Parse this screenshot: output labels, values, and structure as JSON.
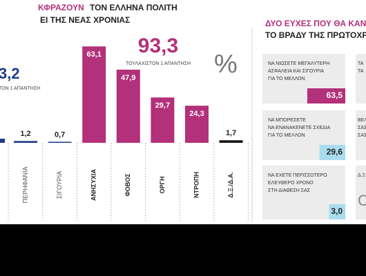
{
  "chart_data": [
    {
      "type": "bar",
      "title": [
        "ΚΦΡΑΖΟΥΝ",
        "ΤΟΝ ΕΛΛΗΝΑ ΠΟΛΙΤΗ",
        "ΕΙ ΤΗΣ ΝΕΑΣ ΧΡΟΝΙΑΣ"
      ],
      "categories": [
        "ΠΕΡΗΦΑΝΙΑ",
        "ΣΙΓΟΥΡΙΑ",
        "ΑΝΗΣΥΧΙΑ",
        "ΦΟΒΟΣ",
        "ΟΡΓΗ",
        "ΝΤΡΟΠΗ",
        "Δ.Ξ./Δ.Α."
      ],
      "values": [
        1.2,
        0.7,
        63.1,
        47.9,
        29.7,
        24.3,
        1.7
      ],
      "value_labels": [
        "1,2",
        "0,7",
        "63,1",
        "47,9",
        "29,7",
        "24,3",
        "1,7"
      ],
      "colors": [
        "#1f3c8c",
        "#1f3c8c",
        "#b3307a",
        "#b3307a",
        "#b3307a",
        "#b3307a",
        "#1a1a1a"
      ],
      "ylim": [
        0,
        70
      ],
      "unit": "%",
      "annotations": [
        {
          "value_label": "3,2",
          "caption": "ΤΟΝ 1 ΑΠΑΝΤΗΣΗ",
          "color": "#1f3c8c"
        },
        {
          "value_label": "93,3",
          "caption": "ΤΟΥΛΑΧΙΣΤΟΝ 1 ΑΠΑΝΤΗΣΗ",
          "color": "#b3307a"
        }
      ]
    },
    {
      "type": "hbar",
      "title": [
        "ΔΥΟ ΕΥΧΕΣ ΠΟΥ ΘΑ ΚΑΝΑ",
        "ΤΟ ΒΡΑΔΥ ΤΗΣ ΠΡΩΤΟΧΡΟ"
      ],
      "categories": [
        [
          "ΝΑ ΝΙΩΣΕΤΕ ΜΕΓΑΛΥΤΕΡΗ",
          "ΑΣΦΑΛΕΙΑ ΚΑΙ ΣΙΓΟΥΡΙΑ",
          "ΓΙΑ ΤΟ ΜΕΛΛΟΝ"
        ],
        [
          "ΝΑ ΜΠΟΡΕΣΕΤΕ",
          "ΝΑ ΕΝΑΝΑΚΕΝΕΤΕ ΣΧΕΔΙΑ",
          "ΓΙΑ ΤΟ ΜΕΛΛΟΝ"
        ],
        [
          "ΝΑ ΕΧΕΤΕ ΠΕΡΙΣΣΟΤΕΡΟ",
          "ΕΛΕΥΘΕΡΟ ΧΡΟΝΟ",
          "ΣΤΗ ΔΙΑΘΕΣΗ ΣΑΣ"
        ]
      ],
      "values": [
        63.5,
        29.6,
        3.0
      ],
      "value_labels": [
        "63,5",
        "29,6",
        "3,0"
      ],
      "colors": [
        "#b3307a",
        "#a9dcef",
        "#a9dcef"
      ],
      "fragments": [
        [
          "ΤΑ",
          "ΤΑ"
        ],
        [
          "ΒΕΛ",
          "ΣΑΣ",
          "ΣΑΣ"
        ],
        [
          "Δ.Ξ",
          "C"
        ]
      ]
    }
  ]
}
